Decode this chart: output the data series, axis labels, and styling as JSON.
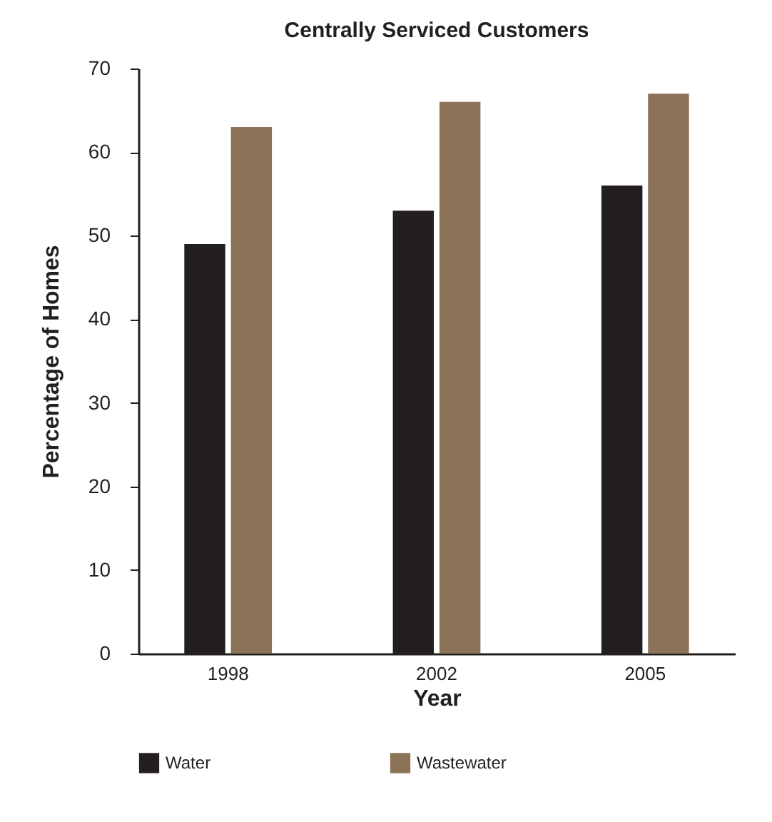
{
  "chart_data": {
    "type": "bar",
    "title": "Centrally Serviced Customers",
    "xlabel": "Year",
    "ylabel": "Percentage of Homes",
    "categories": [
      "1998",
      "2002",
      "2005"
    ],
    "series": [
      {
        "name": "Water",
        "color": "#231f20",
        "values": [
          49,
          53,
          56
        ]
      },
      {
        "name": "Wastewater",
        "color": "#8c7358",
        "values": [
          63,
          66,
          67
        ]
      }
    ],
    "ylim": [
      0,
      70
    ],
    "yticks": [
      0,
      10,
      20,
      30,
      40,
      50,
      60,
      70
    ],
    "grid": false,
    "legend": "bottom"
  }
}
